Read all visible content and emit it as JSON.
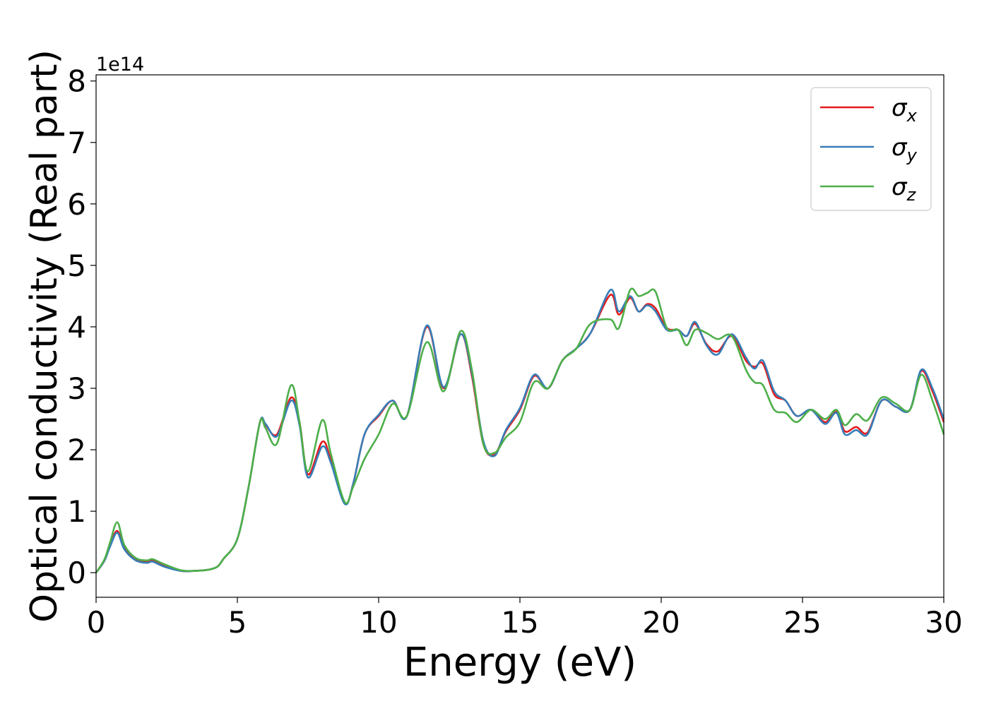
{
  "chart_data": {
    "type": "line",
    "title": "",
    "xlabel": "Energy (eV)",
    "ylabel": "Optical conductivity (Real part)",
    "y_scale_label": "1e14",
    "xlim": [
      0,
      30
    ],
    "ylim": [
      -0.4,
      8.1
    ],
    "x_ticks": [
      0,
      5,
      10,
      15,
      20,
      25,
      30
    ],
    "x_tick_labels": [
      "0",
      "5",
      "10",
      "15",
      "20",
      "25",
      "30"
    ],
    "y_ticks": [
      0,
      1,
      2,
      3,
      4,
      5,
      6,
      7,
      8
    ],
    "y_tick_labels": [
      "0",
      "1",
      "2",
      "3",
      "4",
      "5",
      "6",
      "7",
      "8"
    ],
    "grid": false,
    "legend_position": "top-right",
    "x": [
      0,
      0.3,
      0.5,
      0.75,
      1.0,
      1.4,
      1.8,
      2.0,
      2.4,
      3.0,
      3.5,
      4.0,
      4.3,
      4.5,
      5.0,
      5.4,
      5.8,
      6.0,
      6.4,
      6.9,
      7.2,
      7.5,
      8.0,
      8.3,
      8.8,
      9.1,
      9.5,
      10.0,
      10.5,
      11.0,
      11.7,
      12.3,
      12.9,
      13.3,
      13.7,
      14.1,
      14.5,
      15.0,
      15.5,
      16.0,
      16.5,
      17.0,
      17.5,
      18.2,
      18.5,
      18.9,
      19.2,
      19.5,
      19.8,
      20.2,
      20.6,
      20.9,
      21.2,
      21.6,
      22.0,
      22.5,
      23.0,
      23.3,
      23.6,
      24.0,
      24.4,
      24.8,
      25.3,
      25.8,
      26.2,
      26.5,
      26.9,
      27.3,
      27.8,
      28.3,
      28.8,
      29.2,
      29.6,
      30.0
    ],
    "series": [
      {
        "name": "σx",
        "color": "#e41a1c",
        "values": [
          0,
          0.2,
          0.45,
          0.68,
          0.4,
          0.22,
          0.18,
          0.2,
          0.12,
          0.03,
          0.03,
          0.05,
          0.1,
          0.22,
          0.55,
          1.4,
          2.45,
          2.4,
          2.25,
          2.85,
          2.45,
          1.6,
          2.13,
          1.85,
          1.13,
          1.45,
          2.25,
          2.55,
          2.8,
          2.55,
          4.0,
          3.0,
          3.88,
          3.2,
          2.1,
          1.92,
          2.3,
          2.65,
          3.2,
          3.0,
          3.45,
          3.65,
          3.9,
          4.52,
          4.2,
          4.47,
          4.25,
          4.37,
          4.3,
          3.98,
          3.95,
          3.85,
          4.05,
          3.72,
          3.6,
          3.85,
          3.45,
          3.35,
          3.4,
          2.9,
          2.8,
          2.55,
          2.65,
          2.45,
          2.62,
          2.3,
          2.37,
          2.28,
          2.8,
          2.7,
          2.65,
          3.28,
          2.95,
          2.45
        ]
      },
      {
        "name": "σy",
        "color": "#377eb8",
        "values": [
          0,
          0.2,
          0.43,
          0.65,
          0.38,
          0.2,
          0.16,
          0.18,
          0.1,
          0.03,
          0.03,
          0.05,
          0.1,
          0.22,
          0.55,
          1.4,
          2.45,
          2.42,
          2.22,
          2.8,
          2.4,
          1.55,
          2.05,
          1.8,
          1.12,
          1.45,
          2.25,
          2.57,
          2.8,
          2.55,
          4.02,
          3.02,
          3.88,
          3.25,
          2.15,
          1.9,
          2.32,
          2.68,
          3.22,
          3.0,
          3.45,
          3.65,
          3.9,
          4.6,
          4.25,
          4.5,
          4.25,
          4.35,
          4.25,
          3.95,
          3.95,
          3.85,
          4.08,
          3.7,
          3.55,
          3.88,
          3.5,
          3.32,
          3.45,
          2.95,
          2.8,
          2.55,
          2.65,
          2.42,
          2.6,
          2.25,
          2.32,
          2.25,
          2.8,
          2.7,
          2.65,
          3.3,
          3.0,
          2.5
        ]
      },
      {
        "name": "σz",
        "color": "#4daf4a",
        "values": [
          0,
          0.22,
          0.5,
          0.82,
          0.45,
          0.24,
          0.2,
          0.22,
          0.14,
          0.04,
          0.03,
          0.05,
          0.1,
          0.22,
          0.55,
          1.4,
          2.45,
          2.35,
          2.1,
          3.05,
          2.45,
          1.65,
          2.48,
          1.95,
          1.15,
          1.4,
          1.85,
          2.25,
          2.75,
          2.55,
          3.75,
          2.95,
          3.93,
          3.3,
          2.1,
          1.95,
          2.2,
          2.45,
          3.1,
          3.0,
          3.45,
          3.65,
          4.05,
          4.12,
          3.98,
          4.6,
          4.5,
          4.55,
          4.57,
          3.98,
          3.95,
          3.7,
          3.95,
          3.9,
          3.8,
          3.85,
          3.3,
          3.1,
          3.05,
          2.65,
          2.6,
          2.45,
          2.65,
          2.5,
          2.65,
          2.4,
          2.58,
          2.48,
          2.85,
          2.75,
          2.65,
          3.22,
          2.8,
          2.25
        ]
      }
    ]
  }
}
